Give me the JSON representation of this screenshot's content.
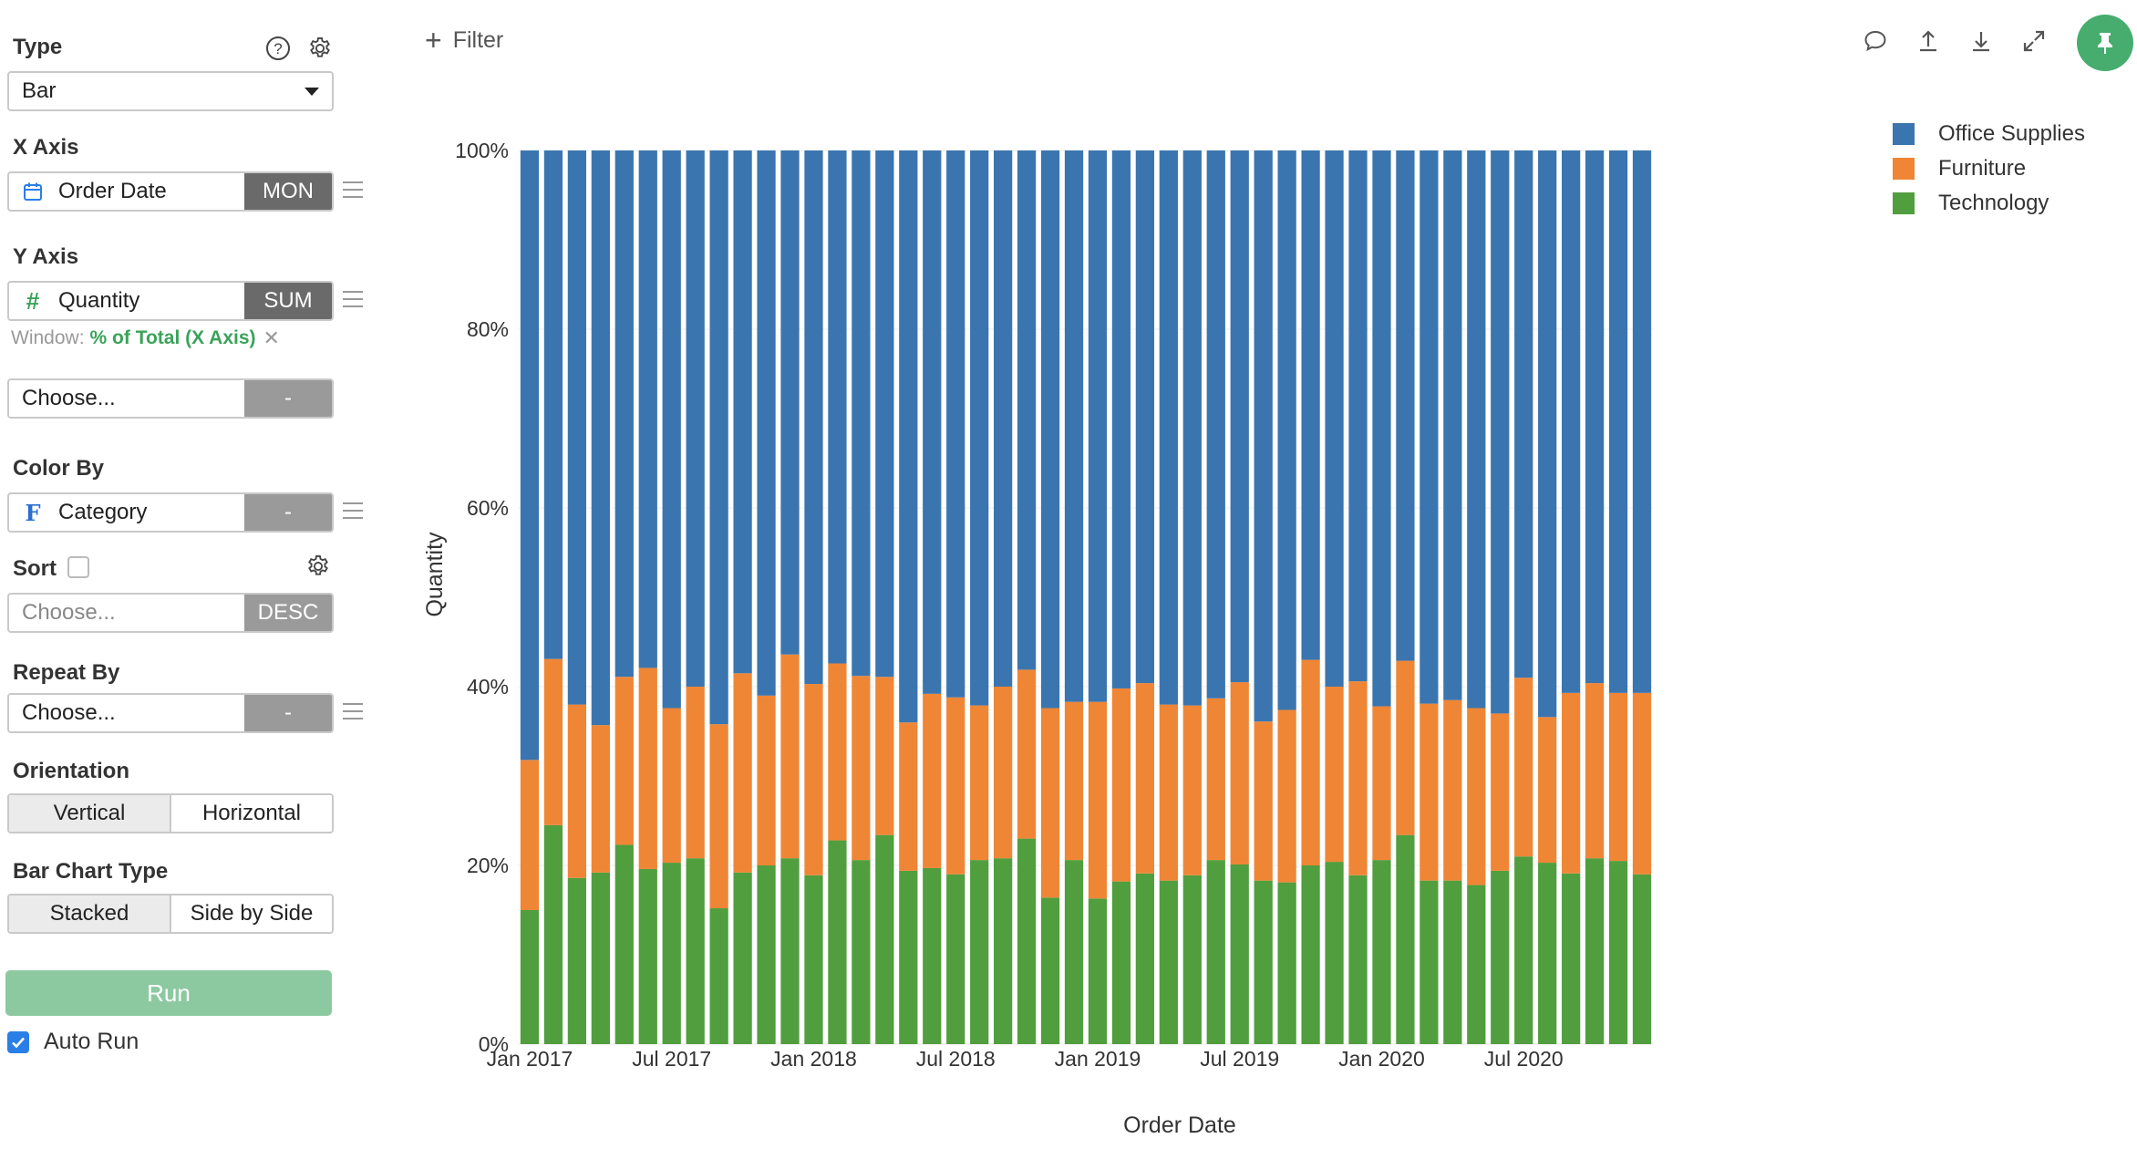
{
  "sidebar": {
    "type": {
      "label": "Type",
      "value": "Bar"
    },
    "x_axis": {
      "label": "X Axis",
      "field": "Order Date",
      "agg": "MON"
    },
    "y_axis": {
      "label": "Y Axis",
      "field": "Quantity",
      "agg": "SUM",
      "window_label": "Window:",
      "window_value": "% of Total (X Axis)"
    },
    "y_extra": {
      "placeholder": "Choose...",
      "agg": "-"
    },
    "color_by": {
      "label": "Color By",
      "field": "Category",
      "agg": "-"
    },
    "sort": {
      "label": "Sort",
      "checked": false,
      "placeholder": "Choose...",
      "agg": "DESC"
    },
    "repeat_by": {
      "label": "Repeat By",
      "placeholder": "Choose...",
      "agg": "-"
    },
    "orientation": {
      "label": "Orientation",
      "options": [
        "Vertical",
        "Horizontal"
      ],
      "selected": "Vertical"
    },
    "bar_chart_type": {
      "label": "Bar Chart Type",
      "options": [
        "Stacked",
        "Side by Side"
      ],
      "selected": "Stacked"
    },
    "run_label": "Run",
    "auto_run": {
      "label": "Auto Run",
      "checked": true
    }
  },
  "toolbar": {
    "filter_label": "Filter",
    "icons": [
      "comment-icon",
      "export-icon",
      "download-icon",
      "expand-icon",
      "pin-icon"
    ]
  },
  "colors": {
    "office_supplies": "#3b75af",
    "furniture": "#ef8636",
    "technology": "#519e3e",
    "accent_green": "#46ad6e"
  },
  "chart_data": {
    "type": "bar",
    "stacked": true,
    "xlabel": "Order Date",
    "ylabel": "Quantity",
    "ylim": [
      0,
      100
    ],
    "y_ticks": [
      "0%",
      "20%",
      "40%",
      "60%",
      "80%",
      "100%"
    ],
    "x_tick_labels": [
      {
        "index": 0,
        "label": "Jan 2017"
      },
      {
        "index": 6,
        "label": "Jul 2017"
      },
      {
        "index": 12,
        "label": "Jan 2018"
      },
      {
        "index": 18,
        "label": "Jul 2018"
      },
      {
        "index": 24,
        "label": "Jan 2019"
      },
      {
        "index": 30,
        "label": "Jul 2019"
      },
      {
        "index": 36,
        "label": "Jan 2020"
      },
      {
        "index": 42,
        "label": "Jul 2020"
      }
    ],
    "legend_position": "top-right",
    "categories": [
      "2017-01",
      "2017-02",
      "2017-03",
      "2017-04",
      "2017-05",
      "2017-06",
      "2017-07",
      "2017-08",
      "2017-09",
      "2017-10",
      "2017-11",
      "2017-12",
      "2018-01",
      "2018-02",
      "2018-03",
      "2018-04",
      "2018-05",
      "2018-06",
      "2018-07",
      "2018-08",
      "2018-09",
      "2018-10",
      "2018-11",
      "2018-12",
      "2019-01",
      "2019-02",
      "2019-03",
      "2019-04",
      "2019-05",
      "2019-06",
      "2019-07",
      "2019-08",
      "2019-09",
      "2019-10",
      "2019-11",
      "2019-12",
      "2020-01",
      "2020-02",
      "2020-03",
      "2020-04",
      "2020-05",
      "2020-06",
      "2020-07",
      "2020-08",
      "2020-09",
      "2020-10",
      "2020-11",
      "2020-12"
    ],
    "series": [
      {
        "name": "Technology",
        "color": "#519e3e",
        "values": [
          15.0,
          24.5,
          18.6,
          19.2,
          22.3,
          19.6,
          20.3,
          20.8,
          15.2,
          19.2,
          20.0,
          20.8,
          18.9,
          22.8,
          20.6,
          23.4,
          19.4,
          19.7,
          19.0,
          20.6,
          20.8,
          23.0,
          16.4,
          20.6,
          16.3,
          18.2,
          19.1,
          18.3,
          18.9,
          20.6,
          20.1,
          18.3,
          18.1,
          20.0,
          20.4,
          18.9,
          20.6,
          23.4,
          18.3,
          18.3,
          17.8,
          19.4,
          21.0,
          20.3,
          19.1,
          20.8,
          20.5,
          19.0
        ]
      },
      {
        "name": "Furniture",
        "color": "#ef8636",
        "values": [
          16.8,
          18.6,
          19.4,
          16.5,
          18.8,
          22.5,
          17.3,
          19.2,
          20.6,
          22.3,
          19.0,
          22.8,
          21.4,
          19.8,
          20.6,
          17.7,
          16.6,
          19.5,
          19.8,
          17.3,
          19.2,
          18.9,
          21.2,
          17.7,
          22.0,
          21.6,
          21.3,
          19.7,
          19.0,
          18.1,
          20.4,
          17.8,
          19.3,
          23.0,
          19.6,
          21.7,
          17.2,
          19.5,
          19.8,
          20.2,
          19.8,
          17.6,
          20.0,
          16.3,
          20.2,
          19.6,
          18.8,
          20.3
        ]
      },
      {
        "name": "Office Supplies",
        "color": "#3b75af",
        "values": [
          68.2,
          56.9,
          62.0,
          64.3,
          58.9,
          57.9,
          62.4,
          60.0,
          64.2,
          58.5,
          61.0,
          56.4,
          59.7,
          57.4,
          58.8,
          58.9,
          64.0,
          60.8,
          61.2,
          62.1,
          60.0,
          58.1,
          62.4,
          61.7,
          61.7,
          60.2,
          59.6,
          62.0,
          62.1,
          61.3,
          59.5,
          63.9,
          62.6,
          57.0,
          60.0,
          59.4,
          62.2,
          57.1,
          61.9,
          61.5,
          62.4,
          63.0,
          59.0,
          63.4,
          60.7,
          59.6,
          60.7,
          60.7
        ]
      }
    ]
  }
}
